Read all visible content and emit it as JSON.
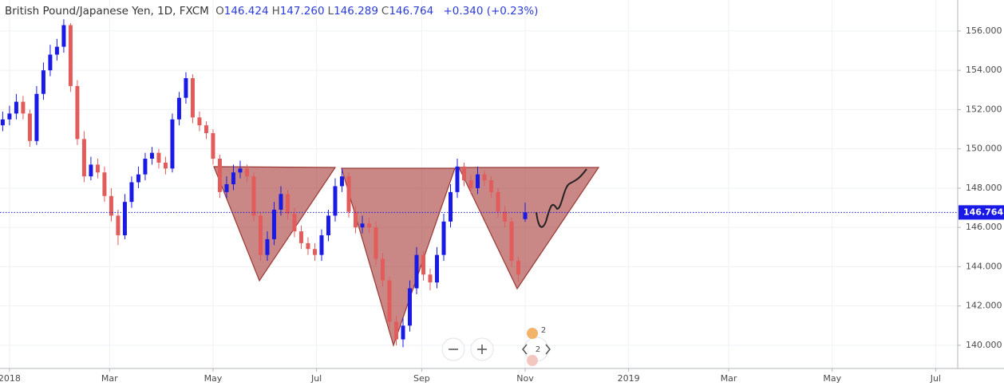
{
  "chart_data": {
    "type": "candlestick",
    "title": "British Pound/Japanese Yen, 1D, FXCM",
    "ohlc_legend": [
      {
        "key": "O",
        "value": "146.424"
      },
      {
        "key": "H",
        "value": "147.260"
      },
      {
        "key": "L",
        "value": "146.289"
      },
      {
        "key": "C",
        "value": "146.764"
      }
    ],
    "change": "+0.340 (+0.23%)",
    "last_price_label": "146.764",
    "event_badges": [
      "2",
      "2"
    ],
    "up_color": "#1a1ae6",
    "down_color": "#e25c5c",
    "grid": true,
    "xlim": [
      -5.6,
      559
    ],
    "xticks": [
      {
        "value": 0,
        "label": "2018"
      },
      {
        "value": 59,
        "label": "Mar"
      },
      {
        "value": 120,
        "label": "May"
      },
      {
        "value": 181,
        "label": "Jul"
      },
      {
        "value": 243,
        "label": "Sep"
      },
      {
        "value": 304,
        "label": "Nov"
      },
      {
        "value": 365,
        "label": "2019"
      },
      {
        "value": 424,
        "label": "Mar"
      },
      {
        "value": 485,
        "label": "May"
      },
      {
        "value": 546,
        "label": "Jul"
      }
    ],
    "ylim": [
      138.82,
      157.58
    ],
    "yticks": [
      {
        "value": 140,
        "label": "140.000"
      },
      {
        "value": 142,
        "label": "142.000"
      },
      {
        "value": 144,
        "label": "144.000"
      },
      {
        "value": 146,
        "label": "146.000"
      },
      {
        "value": 148,
        "label": "148.000"
      },
      {
        "value": 150,
        "label": "150.000"
      },
      {
        "value": 152,
        "label": "152.000"
      },
      {
        "value": 154,
        "label": "154.000"
      },
      {
        "value": 156,
        "label": "156.000"
      }
    ],
    "x": [
      -4,
      0,
      4,
      8,
      12,
      16,
      20,
      24,
      28,
      32,
      36,
      40,
      44,
      48,
      52,
      56,
      60,
      64,
      68,
      72,
      76,
      80,
      84,
      88,
      92,
      96,
      100,
      104,
      108,
      112,
      116,
      120,
      124,
      128,
      132,
      136,
      140,
      144,
      148,
      152,
      156,
      160,
      164,
      168,
      172,
      176,
      180,
      184,
      188,
      192,
      196,
      200,
      204,
      208,
      212,
      216,
      220,
      224,
      228,
      232,
      236,
      240,
      244,
      248,
      252,
      256,
      260,
      264,
      268,
      272,
      276,
      280,
      284,
      288,
      292,
      296,
      300,
      304
    ],
    "open": [
      151.2,
      151.5,
      151.8,
      152.4,
      151.8,
      150.4,
      152.8,
      154.0,
      154.8,
      155.2,
      156.3,
      153.2,
      150.5,
      148.6,
      149.2,
      148.8,
      147.6,
      146.6,
      145.6,
      147.3,
      148.3,
      148.7,
      149.5,
      149.8,
      149.3,
      149.0,
      151.5,
      152.6,
      153.6,
      151.6,
      151.2,
      150.8,
      149.5,
      147.8,
      148.2,
      148.8,
      149.0,
      148.6,
      146.6,
      144.6,
      145.4,
      146.9,
      147.7,
      146.7,
      145.8,
      145.2,
      144.9,
      144.6,
      145.6,
      146.6,
      148.1,
      148.6,
      146.8,
      146.0,
      146.2,
      146.0,
      144.4,
      143.3,
      141.2,
      140.3,
      141.0,
      142.9,
      144.6,
      143.6,
      143.2,
      144.6,
      146.3,
      147.8,
      149.1,
      148.4,
      148.0,
      148.7,
      148.4,
      147.8,
      146.8,
      146.3,
      144.3,
      146.424
    ],
    "high": [
      151.9,
      152.2,
      152.8,
      152.7,
      152.0,
      153.2,
      154.4,
      155.3,
      155.6,
      156.6,
      156.4,
      153.5,
      150.9,
      149.6,
      149.5,
      149.1,
      148.0,
      146.9,
      147.7,
      148.6,
      149.1,
      149.8,
      150.1,
      150.0,
      149.6,
      151.8,
      152.9,
      153.9,
      153.8,
      151.9,
      151.4,
      151.0,
      149.7,
      148.6,
      149.2,
      149.4,
      149.2,
      148.8,
      146.8,
      145.8,
      147.3,
      148.1,
      147.9,
      147.0,
      146.1,
      145.5,
      145.2,
      145.9,
      146.9,
      148.5,
      149.0,
      148.8,
      147.1,
      146.6,
      146.5,
      146.3,
      144.7,
      143.5,
      141.5,
      141.4,
      143.3,
      145.0,
      144.8,
      143.9,
      145.0,
      146.7,
      148.2,
      149.5,
      149.3,
      148.7,
      149.1,
      148.9,
      148.6,
      148.0,
      147.1,
      146.5,
      144.5,
      147.26
    ],
    "low": [
      150.9,
      151.2,
      151.5,
      151.5,
      150.1,
      150.2,
      152.5,
      153.7,
      154.5,
      154.9,
      152.9,
      150.2,
      148.3,
      148.4,
      148.5,
      147.3,
      146.3,
      145.1,
      145.4,
      147.0,
      148.0,
      148.4,
      149.2,
      149.0,
      148.7,
      148.8,
      151.2,
      152.3,
      151.3,
      150.9,
      150.5,
      149.2,
      147.5,
      147.5,
      147.9,
      148.5,
      148.3,
      146.3,
      144.3,
      144.3,
      145.1,
      146.6,
      146.4,
      145.5,
      144.9,
      144.6,
      144.3,
      144.3,
      145.3,
      146.3,
      147.8,
      146.5,
      145.7,
      145.7,
      145.7,
      144.1,
      143.0,
      140.9,
      140.0,
      139.9,
      140.7,
      142.6,
      143.3,
      142.8,
      142.9,
      144.3,
      146.0,
      147.5,
      148.1,
      147.7,
      147.7,
      148.1,
      147.5,
      146.5,
      146.0,
      144.0,
      143.2,
      146.289
    ],
    "close": [
      151.5,
      151.8,
      152.4,
      151.8,
      150.4,
      152.8,
      154.0,
      154.8,
      155.2,
      156.3,
      153.2,
      150.5,
      148.6,
      149.2,
      148.8,
      147.6,
      146.6,
      145.6,
      147.3,
      148.3,
      148.7,
      149.5,
      149.8,
      149.3,
      149.0,
      151.5,
      152.6,
      153.6,
      151.6,
      151.2,
      150.8,
      149.5,
      147.8,
      148.2,
      148.8,
      149.0,
      148.6,
      146.6,
      144.6,
      145.4,
      146.9,
      147.7,
      146.7,
      145.8,
      145.2,
      144.9,
      144.6,
      145.6,
      146.6,
      148.1,
      148.6,
      146.8,
      146.0,
      146.2,
      146.0,
      144.4,
      143.3,
      141.2,
      140.3,
      141.0,
      142.9,
      144.6,
      143.6,
      143.2,
      144.6,
      146.3,
      147.8,
      149.1,
      148.4,
      148.0,
      148.7,
      148.4,
      147.8,
      146.8,
      146.3,
      144.3,
      143.6,
      146.764
    ]
  }
}
